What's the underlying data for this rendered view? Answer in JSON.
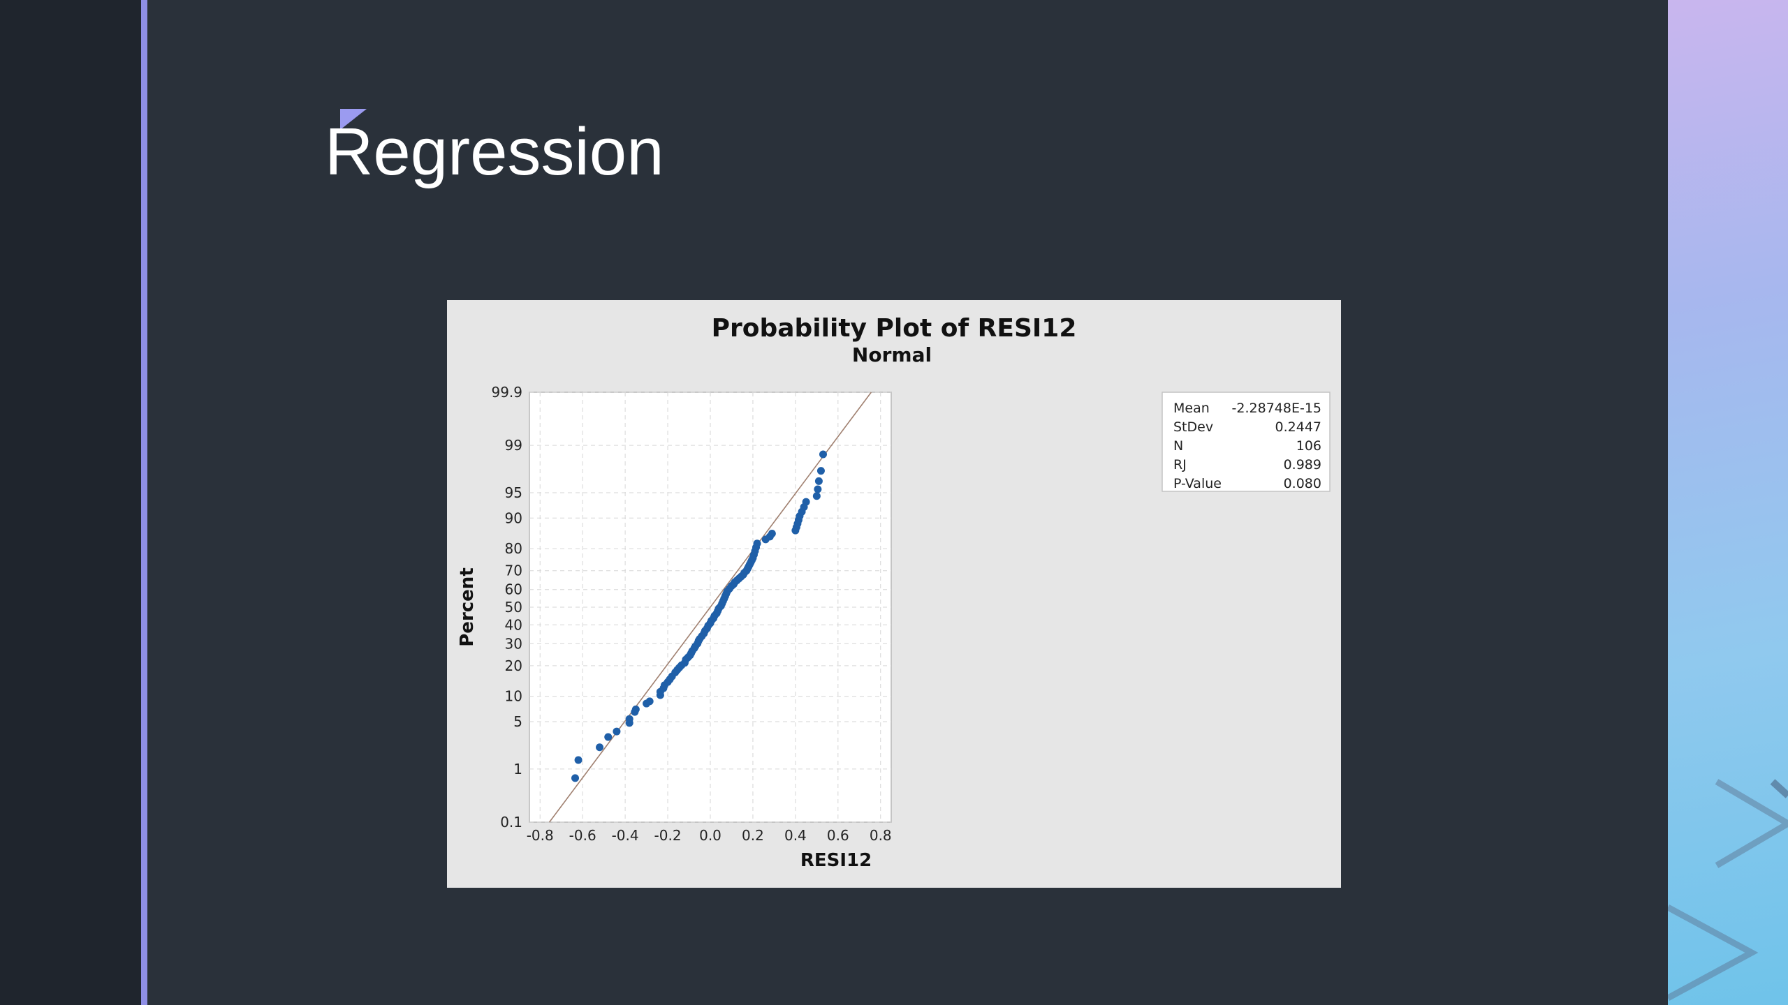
{
  "slide": {
    "title": "Regression",
    "colors": {
      "background": "#2a313a",
      "accent": "#8f8fe6"
    }
  },
  "chart_data": {
    "type": "scatter",
    "title": "Probability Plot of RESI12",
    "subtitle": "Normal",
    "xlabel": "RESI12",
    "ylabel": "Percent",
    "xlim": [
      -0.85,
      0.85
    ],
    "y_scale": "normal-probability",
    "ylim": [
      0.1,
      99.9
    ],
    "x_ticks": [
      "-0.8",
      "-0.6",
      "-0.4",
      "-0.2",
      "0.0",
      "0.2",
      "0.4",
      "0.6",
      "0.8"
    ],
    "y_ticks": [
      "0.1",
      "1",
      "5",
      "10",
      "20",
      "30",
      "40",
      "50",
      "60",
      "70",
      "80",
      "90",
      "95",
      "99",
      "99.9"
    ],
    "grid": true,
    "marker_color": "#1f5fa8",
    "fit_line_color": "#a08070",
    "series": [
      {
        "points": [
          [
            -0.635,
            0.7
          ],
          [
            -0.62,
            1.4
          ],
          [
            -0.52,
            2.2
          ],
          [
            -0.48,
            3.1
          ],
          [
            -0.44,
            3.7
          ],
          [
            -0.38,
            4.8
          ],
          [
            -0.38,
            5.4
          ],
          [
            -0.355,
            6.6
          ],
          [
            -0.35,
            7.1
          ],
          [
            -0.3,
            8.3
          ],
          [
            -0.285,
            8.8
          ],
          [
            -0.235,
            10.3
          ],
          [
            -0.235,
            11.2
          ],
          [
            -0.22,
            12.2
          ],
          [
            -0.215,
            13.1
          ],
          [
            -0.2,
            14.1
          ],
          [
            -0.19,
            15.0
          ],
          [
            -0.18,
            16.0
          ],
          [
            -0.165,
            17.4
          ],
          [
            -0.155,
            18.4
          ],
          [
            -0.145,
            19.3
          ],
          [
            -0.135,
            20.2
          ],
          [
            -0.12,
            21.2
          ],
          [
            -0.115,
            22.6
          ],
          [
            -0.105,
            23.5
          ],
          [
            -0.095,
            24.5
          ],
          [
            -0.09,
            25.4
          ],
          [
            -0.085,
            26.4
          ],
          [
            -0.075,
            27.8
          ],
          [
            -0.07,
            28.7
          ],
          [
            -0.06,
            30.1
          ],
          [
            -0.055,
            31.5
          ],
          [
            -0.05,
            32.4
          ],
          [
            -0.04,
            33.8
          ],
          [
            -0.03,
            35.3
          ],
          [
            -0.025,
            36.7
          ],
          [
            -0.015,
            38.1
          ],
          [
            -0.01,
            39.5
          ],
          [
            0.0,
            40.9
          ],
          [
            0.005,
            42.3
          ],
          [
            0.015,
            43.7
          ],
          [
            0.02,
            45.1
          ],
          [
            0.03,
            46.5
          ],
          [
            0.035,
            47.9
          ],
          [
            0.04,
            49.3
          ],
          [
            0.05,
            50.7
          ],
          [
            0.055,
            52.1
          ],
          [
            0.06,
            53.5
          ],
          [
            0.065,
            54.9
          ],
          [
            0.07,
            56.3
          ],
          [
            0.075,
            57.7
          ],
          [
            0.08,
            59.1
          ],
          [
            0.09,
            60.5
          ],
          [
            0.1,
            62.0
          ],
          [
            0.11,
            63.0
          ],
          [
            0.115,
            64.0
          ],
          [
            0.125,
            65.0
          ],
          [
            0.135,
            66.0
          ],
          [
            0.145,
            67.0
          ],
          [
            0.155,
            68.0
          ],
          [
            0.16,
            69.0
          ],
          [
            0.17,
            70.0
          ],
          [
            0.175,
            71.0
          ],
          [
            0.18,
            72.0
          ],
          [
            0.185,
            73.0
          ],
          [
            0.19,
            74.0
          ],
          [
            0.195,
            75.0
          ],
          [
            0.2,
            76.0
          ],
          [
            0.205,
            77.5
          ],
          [
            0.21,
            79.0
          ],
          [
            0.215,
            80.5
          ],
          [
            0.22,
            82.0
          ],
          [
            0.26,
            83.5
          ],
          [
            0.28,
            84.5
          ],
          [
            0.29,
            85.5
          ],
          [
            0.4,
            86.5
          ],
          [
            0.405,
            87.5
          ],
          [
            0.41,
            88.5
          ],
          [
            0.415,
            89.5
          ],
          [
            0.42,
            90.5
          ],
          [
            0.43,
            91.5
          ],
          [
            0.44,
            92.5
          ],
          [
            0.45,
            93.5
          ],
          [
            0.5,
            94.5
          ],
          [
            0.505,
            95.5
          ],
          [
            0.51,
            96.5
          ],
          [
            0.52,
            97.5
          ],
          [
            0.53,
            98.6
          ]
        ]
      }
    ],
    "fit_line": {
      "mean": 0.0,
      "stdev": 0.2447
    },
    "stats_box": [
      {
        "label": "Mean",
        "value": "-2.28748E-15"
      },
      {
        "label": "StDev",
        "value": "0.2447"
      },
      {
        "label": "N",
        "value": "106"
      },
      {
        "label": "RJ",
        "value": "0.989"
      },
      {
        "label": "P-Value",
        "value": "0.080"
      }
    ]
  }
}
